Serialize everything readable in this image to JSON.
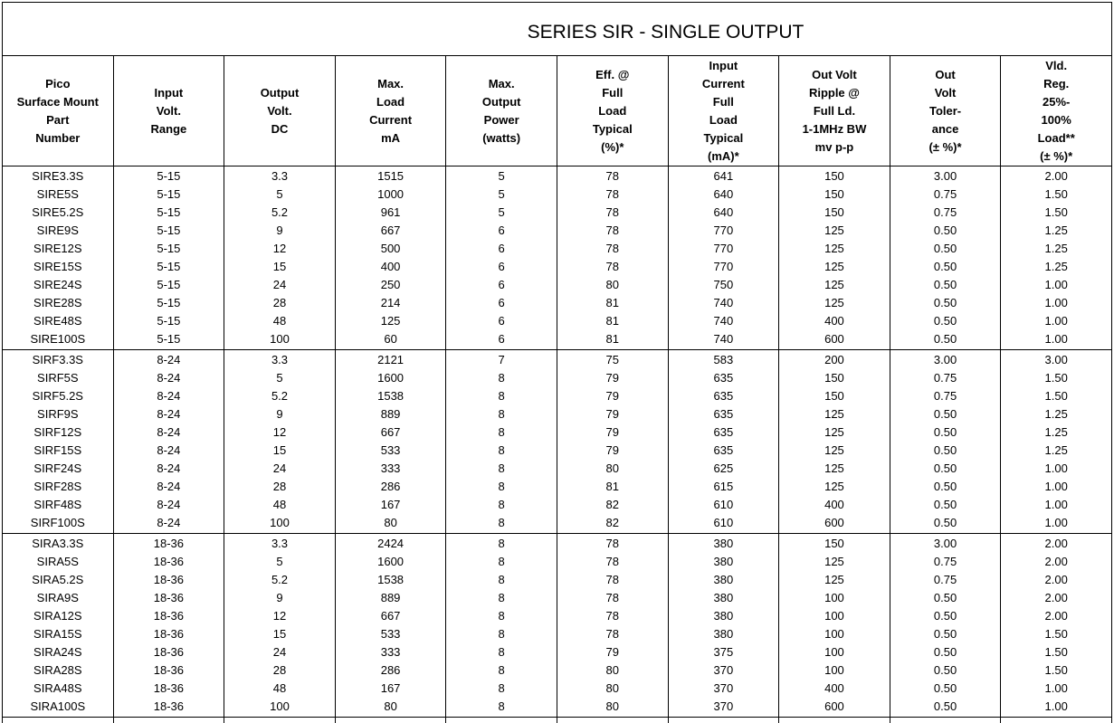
{
  "title": "SERIES SIR - SINGLE OUTPUT",
  "columns": [
    [
      "Pico",
      "Surface Mount",
      "Part",
      "Number"
    ],
    [
      "Input",
      "Volt.",
      "Range"
    ],
    [
      "Output",
      "Volt.",
      "DC"
    ],
    [
      "Max.",
      "Load",
      "Current",
      "mA"
    ],
    [
      "Max.",
      "Output",
      "Power",
      "(watts)"
    ],
    [
      "Eff. @",
      "Full",
      "Load",
      "Typical",
      "(%)*"
    ],
    [
      "Input",
      "Current",
      "Full",
      "Load",
      "Typical",
      "(mA)*"
    ],
    [
      "Out Volt",
      "Ripple @",
      "Full Ld.",
      "1-1MHz BW",
      "mv p-p"
    ],
    [
      "Out",
      "Volt",
      "Toler-",
      "ance",
      "(± %)*"
    ],
    [
      "Vld.",
      "Reg.",
      "25%-",
      "100%",
      "Load**",
      "(± %)*"
    ]
  ],
  "groups": [
    [
      [
        "SIRE3.3S",
        "5-15",
        "3.3",
        "1515",
        "5",
        "78",
        "641",
        "150",
        "3.00",
        "2.00"
      ],
      [
        "SIRE5S",
        "5-15",
        "5",
        "1000",
        "5",
        "78",
        "640",
        "150",
        "0.75",
        "1.50"
      ],
      [
        "SIRE5.2S",
        "5-15",
        "5.2",
        "961",
        "5",
        "78",
        "640",
        "150",
        "0.75",
        "1.50"
      ],
      [
        "SIRE9S",
        "5-15",
        "9",
        "667",
        "6",
        "78",
        "770",
        "125",
        "0.50",
        "1.25"
      ],
      [
        "SIRE12S",
        "5-15",
        "12",
        "500",
        "6",
        "78",
        "770",
        "125",
        "0.50",
        "1.25"
      ],
      [
        "SIRE15S",
        "5-15",
        "15",
        "400",
        "6",
        "78",
        "770",
        "125",
        "0.50",
        "1.25"
      ],
      [
        "SIRE24S",
        "5-15",
        "24",
        "250",
        "6",
        "80",
        "750",
        "125",
        "0.50",
        "1.00"
      ],
      [
        "SIRE28S",
        "5-15",
        "28",
        "214",
        "6",
        "81",
        "740",
        "125",
        "0.50",
        "1.00"
      ],
      [
        "SIRE48S",
        "5-15",
        "48",
        "125",
        "6",
        "81",
        "740",
        "400",
        "0.50",
        "1.00"
      ],
      [
        "SIRE100S",
        "5-15",
        "100",
        "60",
        "6",
        "81",
        "740",
        "600",
        "0.50",
        "1.00"
      ]
    ],
    [
      [
        "SIRF3.3S",
        "8-24",
        "3.3",
        "2121",
        "7",
        "75",
        "583",
        "200",
        "3.00",
        "3.00"
      ],
      [
        "SIRF5S",
        "8-24",
        "5",
        "1600",
        "8",
        "79",
        "635",
        "150",
        "0.75",
        "1.50"
      ],
      [
        "SIRF5.2S",
        "8-24",
        "5.2",
        "1538",
        "8",
        "79",
        "635",
        "150",
        "0.75",
        "1.50"
      ],
      [
        "SIRF9S",
        "8-24",
        "9",
        "889",
        "8",
        "79",
        "635",
        "125",
        "0.50",
        "1.25"
      ],
      [
        "SIRF12S",
        "8-24",
        "12",
        "667",
        "8",
        "79",
        "635",
        "125",
        "0.50",
        "1.25"
      ],
      [
        "SIRF15S",
        "8-24",
        "15",
        "533",
        "8",
        "79",
        "635",
        "125",
        "0.50",
        "1.25"
      ],
      [
        "SIRF24S",
        "8-24",
        "24",
        "333",
        "8",
        "80",
        "625",
        "125",
        "0.50",
        "1.00"
      ],
      [
        "SIRF28S",
        "8-24",
        "28",
        "286",
        "8",
        "81",
        "615",
        "125",
        "0.50",
        "1.00"
      ],
      [
        "SIRF48S",
        "8-24",
        "48",
        "167",
        "8",
        "82",
        "610",
        "400",
        "0.50",
        "1.00"
      ],
      [
        "SIRF100S",
        "8-24",
        "100",
        "80",
        "8",
        "82",
        "610",
        "600",
        "0.50",
        "1.00"
      ]
    ],
    [
      [
        "SIRA3.3S",
        "18-36",
        "3.3",
        "2424",
        "8",
        "78",
        "380",
        "150",
        "3.00",
        "2.00"
      ],
      [
        "SIRA5S",
        "18-36",
        "5",
        "1600",
        "8",
        "78",
        "380",
        "125",
        "0.75",
        "2.00"
      ],
      [
        "SIRA5.2S",
        "18-36",
        "5.2",
        "1538",
        "8",
        "78",
        "380",
        "125",
        "0.75",
        "2.00"
      ],
      [
        "SIRA9S",
        "18-36",
        "9",
        "889",
        "8",
        "78",
        "380",
        "100",
        "0.50",
        "2.00"
      ],
      [
        "SIRA12S",
        "18-36",
        "12",
        "667",
        "8",
        "78",
        "380",
        "100",
        "0.50",
        "2.00"
      ],
      [
        "SIRA15S",
        "18-36",
        "15",
        "533",
        "8",
        "78",
        "380",
        "100",
        "0.50",
        "1.50"
      ],
      [
        "SIRA24S",
        "18-36",
        "24",
        "333",
        "8",
        "79",
        "375",
        "100",
        "0.50",
        "1.50"
      ],
      [
        "SIRA28S",
        "18-36",
        "28",
        "286",
        "8",
        "80",
        "370",
        "100",
        "0.50",
        "1.50"
      ],
      [
        "SIRA48S",
        "18-36",
        "48",
        "167",
        "8",
        "80",
        "370",
        "400",
        "0.50",
        "1.00"
      ],
      [
        "SIRA100S",
        "18-36",
        "100",
        "80",
        "8",
        "80",
        "370",
        "600",
        "0.50",
        "1.00"
      ]
    ]
  ]
}
